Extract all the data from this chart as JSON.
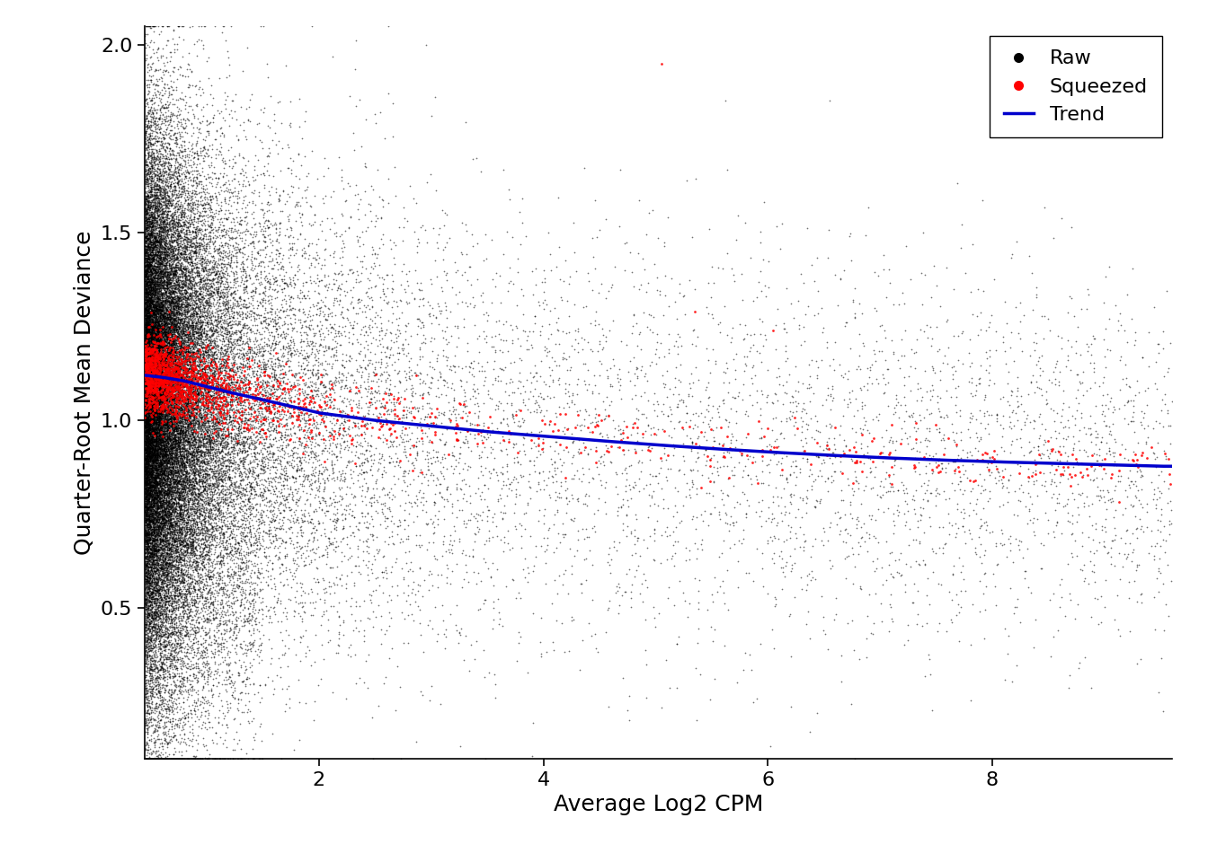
{
  "title": "",
  "xlabel": "Average Log2 CPM",
  "ylabel": "Quarter-Root Mean Deviance",
  "xlim": [
    0.45,
    9.6
  ],
  "ylim": [
    0.1,
    2.05
  ],
  "yticks": [
    0.5,
    1.0,
    1.5,
    2.0
  ],
  "xticks": [
    2,
    4,
    6,
    8
  ],
  "raw_color": "#000000",
  "squeezed_color": "#FF0000",
  "trend_color": "#0000CC",
  "background_color": "#FFFFFF",
  "seed": 42,
  "trend_x": [
    0.45,
    0.6,
    0.8,
    1.0,
    1.2,
    1.5,
    2.0,
    2.5,
    3.0,
    3.5,
    4.0,
    4.5,
    5.0,
    5.5,
    6.0,
    6.5,
    7.0,
    7.5,
    8.0,
    8.5,
    9.0,
    9.5
  ],
  "trend_y": [
    1.12,
    1.115,
    1.105,
    1.09,
    1.075,
    1.055,
    1.02,
    1.0,
    0.985,
    0.97,
    0.958,
    0.946,
    0.935,
    0.925,
    0.916,
    0.908,
    0.901,
    0.895,
    0.89,
    0.886,
    0.882,
    0.878
  ],
  "legend_labels": [
    "Raw",
    "Squeezed",
    "Trend"
  ],
  "fontsize_axis_label": 18,
  "fontsize_tick": 16,
  "fontsize_legend": 16,
  "point_size_raw": 1.5,
  "point_size_squeezed": 4.0,
  "linewidth_trend": 2.5,
  "n_raw": 50000,
  "n_squeezed": 2000
}
